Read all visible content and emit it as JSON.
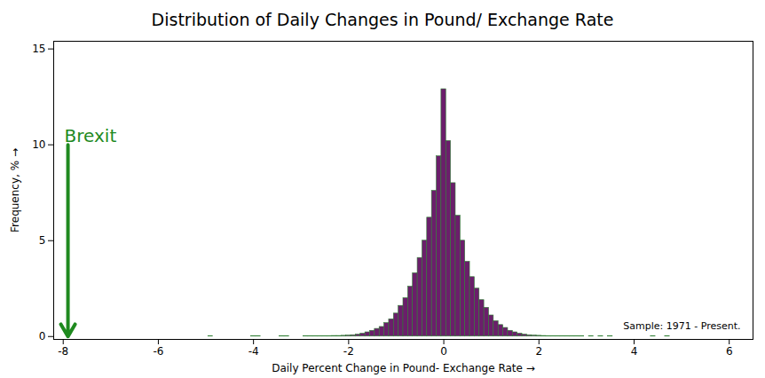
{
  "chart_data": {
    "type": "histogram",
    "title": "Distribution of Daily Changes in Pound/ Exchange Rate",
    "x_label": "Daily Percent Change in Pound- Exchange Rate",
    "y_label": "Frequency, %",
    "bins": [
      -4.95,
      -4.85,
      -4.75,
      -4.65,
      -4.55,
      -4.45,
      -4.35,
      -4.25,
      -4.15,
      -4.05,
      -3.95,
      -3.85,
      -3.75,
      -3.65,
      -3.55,
      -3.45,
      -3.35,
      -3.25,
      -3.15,
      -3.05,
      -2.95,
      -2.85,
      -2.75,
      -2.65,
      -2.55,
      -2.45,
      -2.35,
      -2.25,
      -2.15,
      -2.05,
      -1.95,
      -1.85,
      -1.75,
      -1.65,
      -1.55,
      -1.45,
      -1.35,
      -1.25,
      -1.15,
      -1.05,
      -0.95,
      -0.85,
      -0.75,
      -0.65,
      -0.55,
      -0.45,
      -0.35,
      -0.25,
      -0.15,
      -0.05,
      0.05,
      0.15,
      0.25,
      0.35,
      0.45,
      0.55,
      0.65,
      0.75,
      0.85,
      0.95,
      1.05,
      1.15,
      1.25,
      1.35,
      1.45,
      1.55,
      1.65,
      1.75,
      1.85,
      1.95,
      2.05,
      2.15,
      2.25,
      2.35,
      2.45,
      2.55,
      2.65,
      2.75,
      2.85,
      2.95,
      3.05,
      3.15,
      3.25,
      3.35,
      3.45,
      3.55,
      3.65,
      3.75,
      3.85,
      3.95,
      4.05,
      4.15,
      4.25,
      4.35,
      4.45,
      4.55,
      4.65,
      4.75
    ],
    "values": [
      0.01,
      0,
      0,
      0,
      0,
      0,
      0,
      0,
      0,
      0.01,
      0.01,
      0,
      0,
      0,
      0,
      0.01,
      0.01,
      0,
      0,
      0,
      0.01,
      0.01,
      0.01,
      0.01,
      0.02,
      0.02,
      0.03,
      0.03,
      0.04,
      0.05,
      0.07,
      0.1,
      0.15,
      0.22,
      0.3,
      0.4,
      0.5,
      0.7,
      0.9,
      1.2,
      1.6,
      2.0,
      2.6,
      3.3,
      4.1,
      5.0,
      6.2,
      7.6,
      9.4,
      12.9,
      10.2,
      8.0,
      6.3,
      5.0,
      3.9,
      3.1,
      2.5,
      1.9,
      1.5,
      1.1,
      0.8,
      0.6,
      0.45,
      0.3,
      0.22,
      0.15,
      0.1,
      0.07,
      0.05,
      0.04,
      0.03,
      0.02,
      0.02,
      0.01,
      0.01,
      0.01,
      0.01,
      0.01,
      0.01,
      0,
      0.01,
      0,
      0.01,
      0,
      0.01,
      0,
      0,
      0,
      0,
      0,
      0,
      0,
      0,
      0.01,
      0,
      0,
      0.01
    ],
    "color": "#6b1e6b",
    "xlim": [
      -8.2,
      6.5
    ],
    "xticks": [
      -8,
      -6,
      -4,
      -2,
      0,
      2,
      4,
      6
    ],
    "ylim": [
      -0.15,
      15.4
    ],
    "yticks": [
      0,
      5,
      10,
      15
    ],
    "grid": false,
    "annotations": [
      {
        "text": "Brexit",
        "x": -7.9,
        "y": 10,
        "y_end": 0,
        "color": "#1f8a1f"
      }
    ],
    "note": "Sample: 1971 - Present."
  }
}
